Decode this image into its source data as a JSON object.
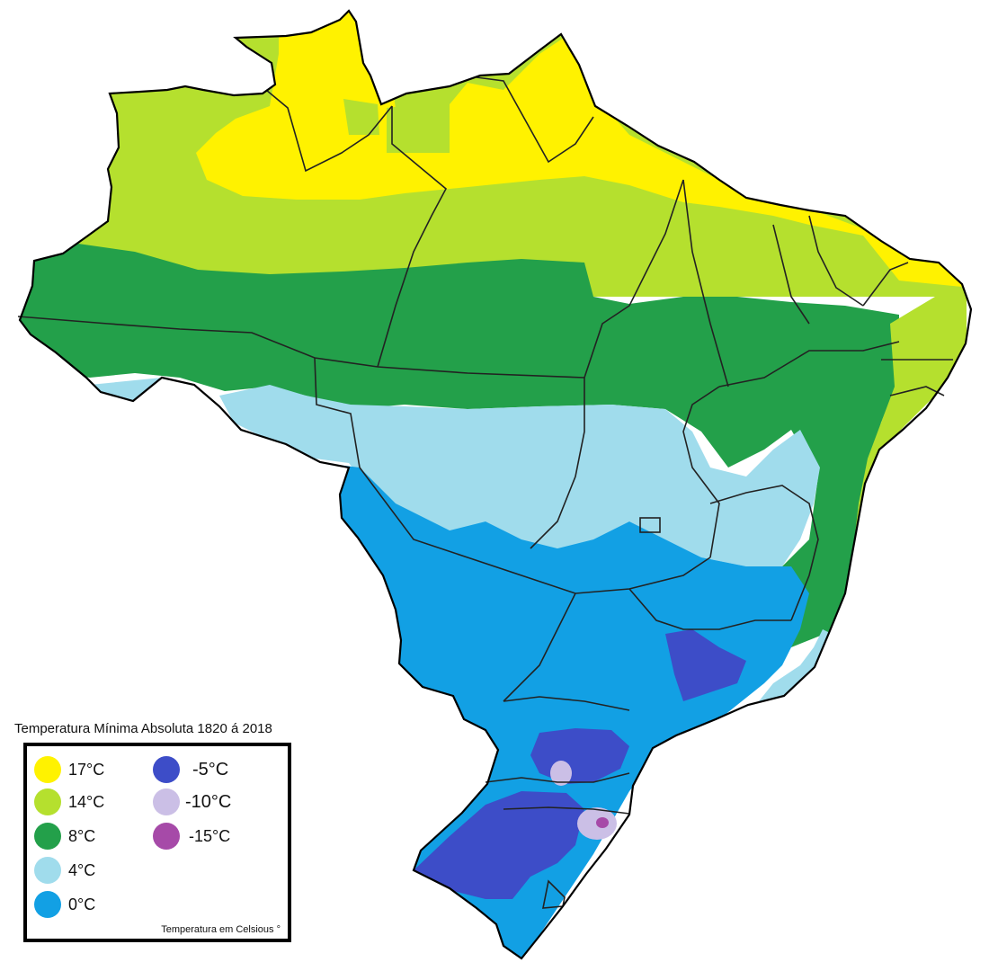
{
  "legend": {
    "title": "Temperatura Mínima Absoluta 1820 á 2018",
    "note": "Temperatura em Celsious °",
    "items": [
      {
        "label": "17°C",
        "color": "#fff200"
      },
      {
        "label": "14°C",
        "color": "#b5e02e"
      },
      {
        "label": "8°C",
        "color": "#23a04a"
      },
      {
        "label": "4°C",
        "color": "#a0dcec"
      },
      {
        "label": "0°C",
        "color": "#12a0e4"
      },
      {
        "label": "-5°C",
        "color": "#3d4dc8"
      },
      {
        "label": "-10°C",
        "color": "#cbbfe6"
      },
      {
        "label": "-15°C",
        "color": "#a64aa8"
      }
    ]
  },
  "colors": {
    "border": "#222222",
    "outline": "#000000",
    "background": "#ffffff"
  }
}
